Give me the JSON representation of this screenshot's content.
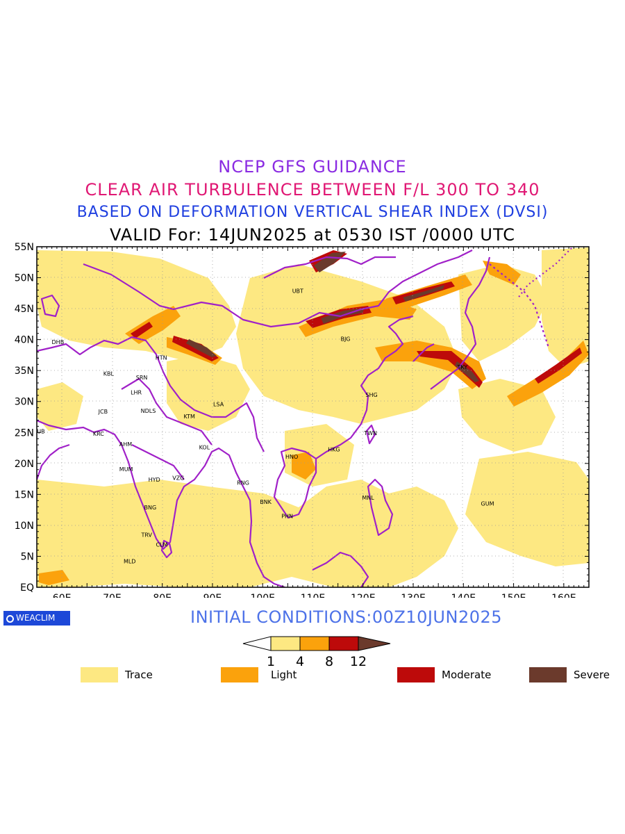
{
  "header": {
    "line1": "NCEP GFS GUIDANCE",
    "line2": "CLEAR AIR TURBULENCE BETWEEN F/L 300 TO 340",
    "line3": "BASED ON DEFORMATION VERTICAL SHEAR INDEX (DVSI)",
    "line4": "VALID For: 14JUN2025 at 0530 IST /0000 UTC"
  },
  "map": {
    "lat_labels": [
      "55N",
      "50N",
      "45N",
      "40N",
      "35N",
      "30N",
      "25N",
      "20N",
      "15N",
      "10N",
      "5N",
      "EQ"
    ],
    "lon_labels": [
      "60E",
      "70E",
      "80E",
      "90E",
      "100E",
      "110E",
      "120E",
      "130E",
      "140E",
      "150E",
      "160E"
    ],
    "stations": [
      {
        "code": "UBT",
        "lon": 107,
        "lat": 47.9
      },
      {
        "code": "BJG",
        "lon": 116.5,
        "lat": 40.1
      },
      {
        "code": "DHB",
        "lon": 59.2,
        "lat": 39.6
      },
      {
        "code": "HTN",
        "lon": 79.8,
        "lat": 37.1
      },
      {
        "code": "KBL",
        "lon": 69.3,
        "lat": 34.5
      },
      {
        "code": "SRN",
        "lon": 75.9,
        "lat": 33.9
      },
      {
        "code": "LHR",
        "lon": 74.8,
        "lat": 31.5
      },
      {
        "code": "TKY",
        "lon": 139.8,
        "lat": 35.6
      },
      {
        "code": "SHG",
        "lon": 121.7,
        "lat": 31.1
      },
      {
        "code": "LSA",
        "lon": 91.2,
        "lat": 29.6
      },
      {
        "code": "JCB",
        "lon": 68.2,
        "lat": 28.4
      },
      {
        "code": "NDLS",
        "lon": 77.2,
        "lat": 28.5
      },
      {
        "code": "KTM",
        "lon": 85.4,
        "lat": 27.6
      },
      {
        "code": "DUB",
        "lon": 55.4,
        "lat": 25.2
      },
      {
        "code": "KRC",
        "lon": 67.3,
        "lat": 24.8
      },
      {
        "code": "TWN",
        "lon": 121.5,
        "lat": 24.9
      },
      {
        "code": "AHM",
        "lon": 72.7,
        "lat": 23.1
      },
      {
        "code": "KOL",
        "lon": 88.4,
        "lat": 22.6
      },
      {
        "code": "HKG",
        "lon": 114.2,
        "lat": 22.3
      },
      {
        "code": "HNO",
        "lon": 105.8,
        "lat": 21.1
      },
      {
        "code": "MUM",
        "lon": 72.8,
        "lat": 19.1
      },
      {
        "code": "HYD",
        "lon": 78.4,
        "lat": 17.4
      },
      {
        "code": "VZG",
        "lon": 83.2,
        "lat": 17.7
      },
      {
        "code": "RNG",
        "lon": 96.1,
        "lat": 16.9
      },
      {
        "code": "BNK",
        "lon": 100.6,
        "lat": 13.8
      },
      {
        "code": "MNL",
        "lon": 121.0,
        "lat": 14.5
      },
      {
        "code": "GUM",
        "lon": 144.8,
        "lat": 13.5
      },
      {
        "code": "BNG",
        "lon": 77.6,
        "lat": 12.9
      },
      {
        "code": "PHN",
        "lon": 104.9,
        "lat": 11.5
      },
      {
        "code": "TRV",
        "lon": 76.9,
        "lat": 8.5
      },
      {
        "code": "CLM",
        "lon": 79.9,
        "lat": 6.9
      },
      {
        "code": "MLD",
        "lon": 73.5,
        "lat": 4.2
      }
    ],
    "fill_colors": {
      "trace": "#fde882",
      "light": "#fba20c",
      "moderate": "#bd0a0a",
      "severe": "#6b3a2c"
    },
    "border_color": "#a020c8"
  },
  "footer": {
    "logo": "WEACLIM",
    "initial_conditions": "INITIAL CONDITIONS:00Z10JUN2025"
  },
  "colorbar": {
    "ticks": [
      "1",
      "4",
      "8",
      "12"
    ]
  },
  "legend": [
    {
      "label": "Trace",
      "color": "#fde882"
    },
    {
      "label": "Light",
      "color": "#fba20c"
    },
    {
      "label": "Moderate",
      "color": "#bd0a0a"
    },
    {
      "label": "Severe",
      "color": "#6b3a2c"
    }
  ]
}
